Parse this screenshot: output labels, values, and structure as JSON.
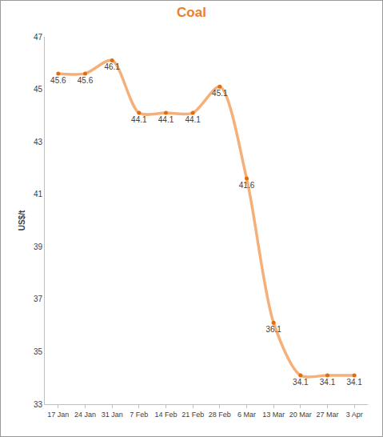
{
  "chart_data": {
    "type": "line",
    "title": "Coal",
    "y_label": "US$/t",
    "categories": [
      "17 Jan",
      "24 Jan",
      "31 Jan",
      "7 Feb",
      "14 Feb",
      "21 Feb",
      "28 Feb",
      "6 Mar",
      "13 Mar",
      "20 Mar",
      "27 Mar",
      "3 Apr"
    ],
    "values": [
      45.6,
      45.6,
      46.1,
      44.1,
      44.1,
      44.1,
      45.1,
      41.6,
      36.1,
      34.1,
      34.1,
      34.1
    ],
    "color": "#f5b07a",
    "marker": "circle",
    "line_style": "spline",
    "ylim": [
      33,
      47
    ],
    "yticks": [
      33,
      35,
      37,
      39,
      41,
      43,
      45,
      47
    ],
    "grid": false,
    "data_labels": true
  }
}
